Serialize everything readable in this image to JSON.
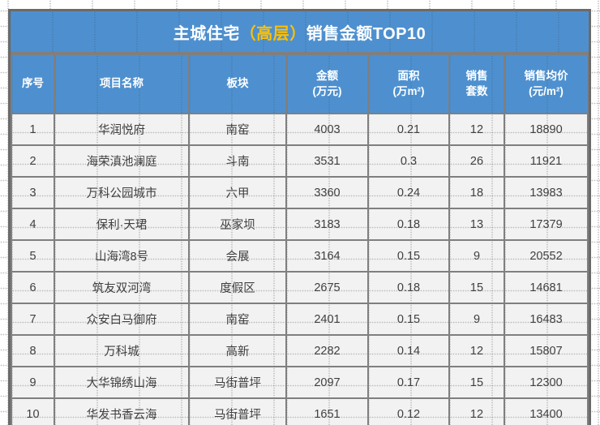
{
  "title": {
    "part1": "主城住宅",
    "highlight": "（高层）",
    "part2": "销售金额TOP10"
  },
  "chart_data": {
    "type": "table",
    "title": "主城住宅（高层）销售金额TOP10",
    "columns": [
      {
        "key": "rank",
        "label": "序号"
      },
      {
        "key": "project",
        "label": "项目名称"
      },
      {
        "key": "district",
        "label": "板块"
      },
      {
        "key": "amount",
        "label": "金额\n(万元)"
      },
      {
        "key": "area",
        "label": "面积\n(万m²)"
      },
      {
        "key": "units",
        "label": "销售\n套数"
      },
      {
        "key": "avg_price",
        "label": "销售均价\n(元/m²)"
      }
    ],
    "rows": [
      [
        "1",
        "华润悦府",
        "南窑",
        "4003",
        "0.21",
        "12",
        "18890"
      ],
      [
        "2",
        "海荣滇池澜庭",
        "斗南",
        "3531",
        "0.3",
        "26",
        "11921"
      ],
      [
        "3",
        "万科公园城市",
        "六甲",
        "3360",
        "0.24",
        "18",
        "13983"
      ],
      [
        "4",
        "保利·天珺",
        "巫家坝",
        "3183",
        "0.18",
        "13",
        "17379"
      ],
      [
        "5",
        "山海湾8号",
        "会展",
        "3164",
        "0.15",
        "9",
        "20552"
      ],
      [
        "6",
        "筑友双河湾",
        "度假区",
        "2675",
        "0.18",
        "15",
        "14681"
      ],
      [
        "7",
        "众安白马御府",
        "南窑",
        "2401",
        "0.15",
        "9",
        "16483"
      ],
      [
        "8",
        "万科城",
        "高新",
        "2282",
        "0.14",
        "12",
        "15807"
      ],
      [
        "9",
        "大华锦绣山海",
        "马街普坪",
        "2097",
        "0.17",
        "15",
        "12300"
      ],
      [
        "10",
        "华发书香云海",
        "马街普坪",
        "1651",
        "0.12",
        "12",
        "13400"
      ]
    ]
  },
  "colors": {
    "header_blue": "#4E90CF",
    "title_highlight": "#FFC000",
    "cell_background": "#F2F2F2",
    "grid_border": "#7F7F7F",
    "text": "#3F3F3F",
    "header_text": "#FFFFFF"
  }
}
